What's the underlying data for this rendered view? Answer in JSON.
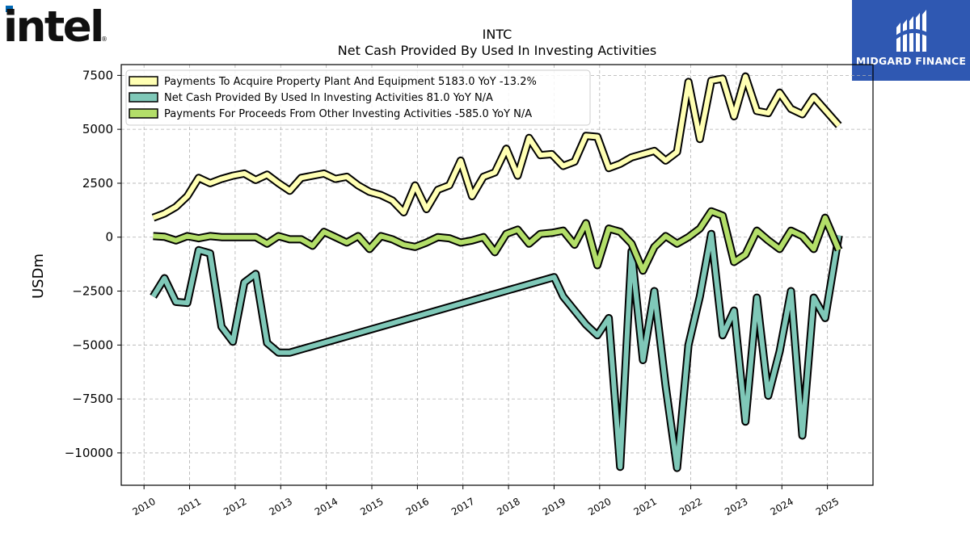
{
  "logo": {
    "text": "intel",
    "color": "#111111",
    "accent": "#0068b5"
  },
  "badge": {
    "text": "MIDGARD FINANCE",
    "bg": "#2f58b2"
  },
  "chart_data": {
    "type": "line",
    "title": "INTC",
    "subtitle": "Net Cash Provided By Used In Investing Activities",
    "ylabel": "USDm",
    "xlabel": "",
    "xlim": [
      2009.5,
      2026.0
    ],
    "ylim": [
      -11500,
      8000
    ],
    "yticks": [
      7500,
      5000,
      2500,
      0,
      -2500,
      -5000,
      -7500,
      -10000
    ],
    "ytick_labels": [
      "7500",
      "5000",
      "2500",
      "0",
      "−2500",
      "−5000",
      "−7500",
      "−10000"
    ],
    "xticks": [
      2010,
      2011,
      2012,
      2013,
      2014,
      2015,
      2016,
      2017,
      2018,
      2019,
      2020,
      2021,
      2022,
      2023,
      2024,
      2025
    ],
    "xtick_labels": [
      "2010",
      "2011",
      "2012",
      "2013",
      "2014",
      "2015",
      "2016",
      "2017",
      "2018",
      "2019",
      "2020",
      "2021",
      "2022",
      "2023",
      "2024",
      "2025"
    ],
    "grid": true,
    "legend_position": "top-left",
    "series": [
      {
        "name": "Payments To Acquire Property Plant And Equipment  5183.0 YoY -13.2%",
        "color": "#ffffb3",
        "points": [
          [
            2010.2,
            900
          ],
          [
            2010.45,
            1100
          ],
          [
            2010.7,
            1400
          ],
          [
            2010.95,
            1900
          ],
          [
            2011.2,
            2750
          ],
          [
            2011.45,
            2500
          ],
          [
            2011.7,
            2700
          ],
          [
            2011.95,
            2850
          ],
          [
            2012.2,
            2950
          ],
          [
            2012.45,
            2650
          ],
          [
            2012.7,
            2900
          ],
          [
            2012.95,
            2500
          ],
          [
            2013.2,
            2150
          ],
          [
            2013.45,
            2750
          ],
          [
            2013.7,
            2850
          ],
          [
            2013.95,
            2950
          ],
          [
            2014.2,
            2700
          ],
          [
            2014.45,
            2800
          ],
          [
            2014.7,
            2400
          ],
          [
            2014.95,
            2100
          ],
          [
            2015.2,
            1950
          ],
          [
            2015.45,
            1700
          ],
          [
            2015.7,
            1150
          ],
          [
            2015.95,
            2400
          ],
          [
            2016.2,
            1300
          ],
          [
            2016.45,
            2200
          ],
          [
            2016.7,
            2400
          ],
          [
            2016.95,
            3550
          ],
          [
            2017.2,
            1900
          ],
          [
            2017.45,
            2800
          ],
          [
            2017.7,
            3000
          ],
          [
            2017.95,
            4100
          ],
          [
            2018.2,
            2850
          ],
          [
            2018.45,
            4600
          ],
          [
            2018.7,
            3800
          ],
          [
            2018.95,
            3850
          ],
          [
            2019.2,
            3300
          ],
          [
            2019.45,
            3500
          ],
          [
            2019.7,
            4700
          ],
          [
            2019.95,
            4650
          ],
          [
            2020.2,
            3200
          ],
          [
            2020.45,
            3400
          ],
          [
            2020.7,
            3700
          ],
          [
            2020.95,
            3850
          ],
          [
            2021.2,
            4000
          ],
          [
            2021.45,
            3550
          ],
          [
            2021.7,
            3950
          ],
          [
            2021.95,
            7200
          ],
          [
            2022.2,
            4550
          ],
          [
            2022.45,
            7250
          ],
          [
            2022.7,
            7350
          ],
          [
            2022.95,
            5600
          ],
          [
            2023.2,
            7450
          ],
          [
            2023.45,
            5850
          ],
          [
            2023.7,
            5750
          ],
          [
            2023.95,
            6700
          ],
          [
            2024.2,
            5950
          ],
          [
            2024.45,
            5700
          ],
          [
            2024.7,
            6500
          ],
          [
            2024.95,
            5900
          ],
          [
            2025.25,
            5183
          ]
        ]
      },
      {
        "name": "Net Cash Provided By Used In Investing Activities  81.0 YoY N/A",
        "color": "#7fc8b8",
        "points": [
          [
            2010.2,
            -2750
          ],
          [
            2010.45,
            -1900
          ],
          [
            2010.7,
            -3000
          ],
          [
            2010.95,
            -3050
          ],
          [
            2011.2,
            -600
          ],
          [
            2011.45,
            -750
          ],
          [
            2011.7,
            -4150
          ],
          [
            2011.95,
            -4850
          ],
          [
            2012.2,
            -2100
          ],
          [
            2012.45,
            -1700
          ],
          [
            2012.7,
            -4900
          ],
          [
            2012.95,
            -5350
          ],
          [
            2013.2,
            -5350
          ],
          [
            2019.0,
            -1850
          ],
          [
            2019.2,
            -2750
          ],
          [
            2019.45,
            -3400
          ],
          [
            2019.7,
            -4050
          ],
          [
            2019.95,
            -4550
          ],
          [
            2020.2,
            -3750
          ],
          [
            2020.45,
            -10650
          ],
          [
            2020.7,
            -650
          ],
          [
            2020.95,
            -5700
          ],
          [
            2021.2,
            -2500
          ],
          [
            2021.45,
            -6900
          ],
          [
            2021.7,
            -10700
          ],
          [
            2021.95,
            -5000
          ],
          [
            2022.2,
            -2750
          ],
          [
            2022.45,
            150
          ],
          [
            2022.7,
            -4550
          ],
          [
            2022.95,
            -3400
          ],
          [
            2023.2,
            -8550
          ],
          [
            2023.45,
            -2800
          ],
          [
            2023.7,
            -7350
          ],
          [
            2023.95,
            -5300
          ],
          [
            2024.2,
            -2500
          ],
          [
            2024.45,
            -9200
          ],
          [
            2024.7,
            -2800
          ],
          [
            2024.95,
            -3750
          ],
          [
            2025.25,
            81
          ]
        ]
      },
      {
        "name": "Payments For Proceeds From Other Investing Activities  -585.0 YoY N/A",
        "color": "#b3de69",
        "points": [
          [
            2010.2,
            50
          ],
          [
            2010.45,
            20
          ],
          [
            2010.7,
            -150
          ],
          [
            2010.95,
            50
          ],
          [
            2011.2,
            -50
          ],
          [
            2011.45,
            50
          ],
          [
            2011.7,
            0
          ],
          [
            2011.95,
            0
          ],
          [
            2012.2,
            0
          ],
          [
            2012.45,
            0
          ],
          [
            2012.7,
            -300
          ],
          [
            2012.95,
            50
          ],
          [
            2013.2,
            -100
          ],
          [
            2013.45,
            -100
          ],
          [
            2013.7,
            -400
          ],
          [
            2013.95,
            250
          ],
          [
            2014.2,
            0
          ],
          [
            2014.45,
            -250
          ],
          [
            2014.7,
            50
          ],
          [
            2014.95,
            -550
          ],
          [
            2015.2,
            50
          ],
          [
            2015.45,
            -100
          ],
          [
            2015.7,
            -350
          ],
          [
            2015.95,
            -450
          ],
          [
            2016.2,
            -250
          ],
          [
            2016.45,
            0
          ],
          [
            2016.7,
            -50
          ],
          [
            2016.95,
            -250
          ],
          [
            2017.2,
            -150
          ],
          [
            2017.45,
            0
          ],
          [
            2017.7,
            -700
          ],
          [
            2017.95,
            150
          ],
          [
            2018.2,
            350
          ],
          [
            2018.45,
            -300
          ],
          [
            2018.7,
            150
          ],
          [
            2018.95,
            200
          ],
          [
            2019.2,
            300
          ],
          [
            2019.45,
            -350
          ],
          [
            2019.7,
            650
          ],
          [
            2019.95,
            -1300
          ],
          [
            2020.2,
            400
          ],
          [
            2020.45,
            250
          ],
          [
            2020.7,
            -300
          ],
          [
            2020.95,
            -1550
          ],
          [
            2021.2,
            -450
          ],
          [
            2021.45,
            50
          ],
          [
            2021.7,
            -300
          ],
          [
            2021.95,
            0
          ],
          [
            2022.2,
            400
          ],
          [
            2022.45,
            1200
          ],
          [
            2022.7,
            1000
          ],
          [
            2022.95,
            -1150
          ],
          [
            2023.2,
            -800
          ],
          [
            2023.45,
            300
          ],
          [
            2023.7,
            -150
          ],
          [
            2023.95,
            -550
          ],
          [
            2024.2,
            300
          ],
          [
            2024.45,
            50
          ],
          [
            2024.7,
            -550
          ],
          [
            2024.95,
            900
          ],
          [
            2025.25,
            -585
          ]
        ]
      }
    ]
  }
}
